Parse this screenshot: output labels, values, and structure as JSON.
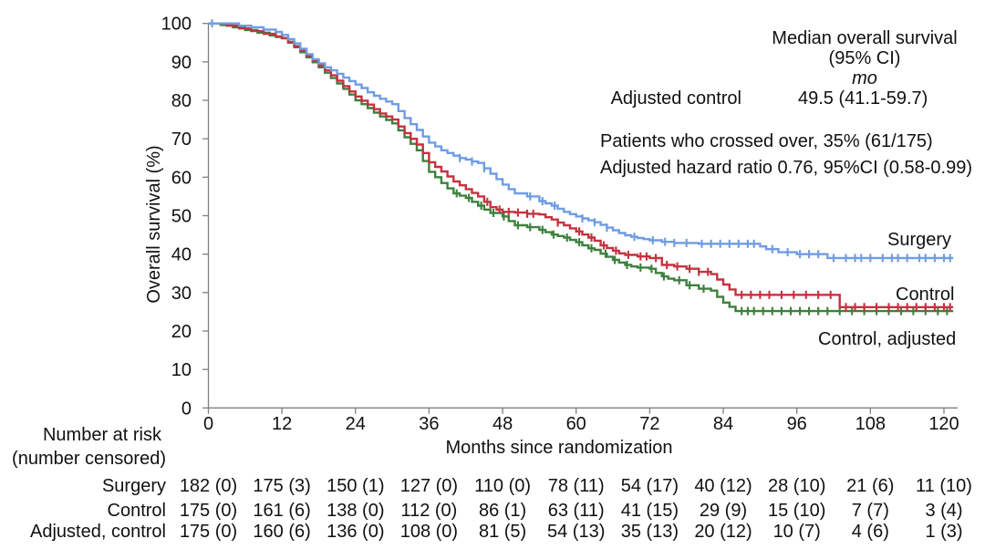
{
  "figure": {
    "background": "#ffffff",
    "text_color": "#111111",
    "axis_color": "#7f7f7f"
  },
  "annotations": {
    "median_title_line1": "Median overall survival",
    "median_title_line2": "(95% CI)",
    "median_unit": "mo",
    "median_row_label": "Adjusted control",
    "median_row_value": "49.5 (41.1-59.7)",
    "crossover_note": "Patients who crossed over, 35% (61/175)",
    "hazard_note": "Adjusted hazard ratio 0.76, 95%CI (0.58-0.99)"
  },
  "chart_data": {
    "type": "line",
    "subtype": "kaplan-meier-step",
    "title": "",
    "xlabel": "Months since randomization",
    "ylabel": "Overall survival (%)",
    "xlim": [
      0,
      122
    ],
    "ylim": [
      0,
      100
    ],
    "xticks": [
      0,
      12,
      24,
      36,
      48,
      60,
      72,
      84,
      96,
      108,
      120
    ],
    "yticks": [
      0,
      10,
      20,
      30,
      40,
      50,
      60,
      70,
      80,
      90,
      100
    ],
    "grid": false,
    "legend_position": "end-of-curve",
    "series": [
      {
        "name": "Surgery",
        "end_label": "Surgery",
        "color": "#6F9CE3",
        "points": [
          [
            0,
            100
          ],
          [
            5,
            99.4
          ],
          [
            7,
            99
          ],
          [
            9,
            98.4
          ],
          [
            11,
            97.8
          ],
          [
            12,
            97
          ],
          [
            13,
            95.9
          ],
          [
            14,
            94.8
          ],
          [
            15,
            93.4
          ],
          [
            16,
            92
          ],
          [
            17,
            90.7
          ],
          [
            18,
            89.6
          ],
          [
            19,
            88.6
          ],
          [
            20,
            87.8
          ],
          [
            21,
            86.9
          ],
          [
            22,
            85.9
          ],
          [
            23,
            85
          ],
          [
            24,
            84.1
          ],
          [
            25,
            83.2
          ],
          [
            26,
            82.1
          ],
          [
            27,
            81.2
          ],
          [
            28,
            80.4
          ],
          [
            29,
            79.7
          ],
          [
            30,
            79
          ],
          [
            31,
            77.2
          ],
          [
            32,
            75.4
          ],
          [
            33,
            73.8
          ],
          [
            34,
            72.3
          ],
          [
            35,
            70.6
          ],
          [
            36,
            69
          ],
          [
            37,
            68
          ],
          [
            38,
            67
          ],
          [
            39,
            66.3
          ],
          [
            40,
            65.6
          ],
          [
            41,
            65
          ],
          [
            42,
            64.6
          ],
          [
            43,
            64.1
          ],
          [
            44,
            63.7
          ],
          [
            45,
            62.3
          ],
          [
            46,
            60.9
          ],
          [
            47,
            59.5
          ],
          [
            48,
            58.1
          ],
          [
            49,
            56.9
          ],
          [
            50,
            55.8
          ],
          [
            52,
            55
          ],
          [
            54,
            53.8
          ],
          [
            55,
            53.2
          ],
          [
            56,
            52.6
          ],
          [
            57,
            51.8
          ],
          [
            58,
            51
          ],
          [
            59,
            50.4
          ],
          [
            60,
            49.8
          ],
          [
            61,
            49.3
          ],
          [
            62,
            48.8
          ],
          [
            63,
            48.3
          ],
          [
            64,
            47.6
          ],
          [
            65,
            46.9
          ],
          [
            66,
            46.2
          ],
          [
            67,
            45.5
          ],
          [
            68,
            44.9
          ],
          [
            69,
            44.5
          ],
          [
            70,
            44.2
          ],
          [
            71,
            43.9
          ],
          [
            72,
            43.6
          ],
          [
            74,
            43.2
          ],
          [
            76,
            42.9
          ],
          [
            80,
            42.7
          ],
          [
            90,
            42
          ],
          [
            91,
            41.3
          ],
          [
            93,
            40.5
          ],
          [
            96,
            40
          ],
          [
            101,
            39
          ],
          [
            121.5,
            39
          ]
        ],
        "censor_marks": [
          0.6,
          41,
          43,
          45,
          52.5,
          54.5,
          56.5,
          61,
          63,
          65,
          69.5,
          72.5,
          74.5,
          76,
          78,
          80.5,
          82,
          83.5,
          85,
          86.5,
          88,
          89,
          92,
          94.5,
          96.5,
          98,
          99.5,
          102,
          104,
          105.5,
          106.5,
          108,
          110,
          111.5,
          112.5,
          114,
          116,
          117,
          118.5,
          120,
          121
        ]
      },
      {
        "name": "Control",
        "end_label": "Control",
        "color": "#C4323F",
        "points": [
          [
            0,
            100
          ],
          [
            3,
            99.4
          ],
          [
            5,
            98.7
          ],
          [
            7,
            98
          ],
          [
            9,
            97.3
          ],
          [
            11,
            96.6
          ],
          [
            12,
            96.2
          ],
          [
            13,
            95.2
          ],
          [
            14,
            94.1
          ],
          [
            15,
            92.9
          ],
          [
            16,
            91.6
          ],
          [
            17,
            90.3
          ],
          [
            18,
            89.1
          ],
          [
            19,
            87.8
          ],
          [
            20,
            86.5
          ],
          [
            21,
            85.1
          ],
          [
            22,
            83.7
          ],
          [
            23,
            82.3
          ],
          [
            24,
            81
          ],
          [
            25,
            79.9
          ],
          [
            26,
            78.9
          ],
          [
            27,
            77.7
          ],
          [
            28,
            76.6
          ],
          [
            29,
            75.8
          ],
          [
            30,
            75
          ],
          [
            31,
            73.2
          ],
          [
            32,
            71.5
          ],
          [
            33,
            70
          ],
          [
            34,
            68.5
          ],
          [
            35,
            66.3
          ],
          [
            36,
            63.9
          ],
          [
            37,
            62.7
          ],
          [
            38,
            61.5
          ],
          [
            39,
            60.2
          ],
          [
            40,
            58.9
          ],
          [
            41,
            57.9
          ],
          [
            42,
            56.9
          ],
          [
            43,
            55.9
          ],
          [
            44,
            55
          ],
          [
            45,
            53.6
          ],
          [
            46,
            52.2
          ],
          [
            47,
            51.6
          ],
          [
            48,
            51
          ],
          [
            50,
            50.8
          ],
          [
            52,
            50.5
          ],
          [
            54,
            50.3
          ],
          [
            55,
            49.6
          ],
          [
            56,
            49
          ],
          [
            57,
            48.2
          ],
          [
            58,
            47.5
          ],
          [
            59,
            46.7
          ],
          [
            60,
            45.9
          ],
          [
            61,
            45.1
          ],
          [
            62,
            44.3
          ],
          [
            63,
            43.5
          ],
          [
            64,
            42.3
          ],
          [
            65,
            41.6
          ],
          [
            66,
            40.9
          ],
          [
            67,
            40.2
          ],
          [
            68,
            39.8
          ],
          [
            70,
            39.4
          ],
          [
            72,
            39
          ],
          [
            74,
            37.2
          ],
          [
            76,
            36.8
          ],
          [
            78,
            36.2
          ],
          [
            80,
            35.4
          ],
          [
            82,
            34.8
          ],
          [
            83,
            33.4
          ],
          [
            84,
            32.1
          ],
          [
            85,
            30.8
          ],
          [
            86,
            29.4
          ],
          [
            103,
            26.2
          ],
          [
            121.5,
            26.2
          ]
        ],
        "censor_marks": [
          45.5,
          47.5,
          49,
          50.5,
          52,
          53,
          57,
          60.5,
          62.5,
          64.5,
          66.5,
          68.5,
          70.5,
          71.5,
          73,
          74.8,
          76.5,
          78.5,
          80,
          81.5,
          87,
          88.5,
          90,
          91.5,
          93.5,
          95.5,
          97.5,
          99.5,
          101.5,
          104,
          105.5,
          107,
          109,
          111,
          112.5,
          114,
          115.5,
          117,
          118.5,
          120,
          121
        ]
      },
      {
        "name": "Control, adjusted",
        "end_label": "Control, adjusted",
        "color": "#3E803E",
        "points": [
          [
            0,
            100
          ],
          [
            2,
            99.6
          ],
          [
            4,
            99
          ],
          [
            6,
            98.3
          ],
          [
            8,
            97.6
          ],
          [
            10,
            96.9
          ],
          [
            11,
            96.5
          ],
          [
            12,
            96.1
          ],
          [
            13,
            95
          ],
          [
            14,
            93.8
          ],
          [
            15,
            92.5
          ],
          [
            16,
            91.2
          ],
          [
            17,
            89.9
          ],
          [
            18,
            88.6
          ],
          [
            19,
            87.2
          ],
          [
            20,
            85.8
          ],
          [
            21,
            84.4
          ],
          [
            22,
            83
          ],
          [
            23,
            81.5
          ],
          [
            24,
            80
          ],
          [
            25,
            79
          ],
          [
            26,
            78
          ],
          [
            27,
            76.8
          ],
          [
            28,
            75.8
          ],
          [
            29,
            74.9
          ],
          [
            30,
            74
          ],
          [
            31,
            72.2
          ],
          [
            32,
            70.4
          ],
          [
            33,
            68.7
          ],
          [
            34,
            67
          ],
          [
            35,
            64.2
          ],
          [
            36,
            61.4
          ],
          [
            37,
            60
          ],
          [
            38,
            58.5
          ],
          [
            39,
            57.1
          ],
          [
            40,
            55.8
          ],
          [
            41,
            55.2
          ],
          [
            42,
            54.6
          ],
          [
            43,
            53.6
          ],
          [
            44,
            52.6
          ],
          [
            45,
            51.6
          ],
          [
            46,
            50.7
          ],
          [
            48,
            49.8
          ],
          [
            49,
            48.6
          ],
          [
            50,
            47.5
          ],
          [
            52,
            47
          ],
          [
            54,
            46.3
          ],
          [
            55,
            45.7
          ],
          [
            56,
            45.1
          ],
          [
            57,
            44.7
          ],
          [
            58,
            44.3
          ],
          [
            59,
            43.7
          ],
          [
            60,
            43.1
          ],
          [
            61,
            42.3
          ],
          [
            62,
            41.5
          ],
          [
            63,
            41.1
          ],
          [
            64,
            40.1
          ],
          [
            65,
            39.3
          ],
          [
            66,
            38.5
          ],
          [
            67,
            37.8
          ],
          [
            68,
            37.2
          ],
          [
            69,
            36.8
          ],
          [
            70,
            36.5
          ],
          [
            72,
            36.2
          ],
          [
            73,
            35.1
          ],
          [
            74,
            34.2
          ],
          [
            75,
            33.6
          ],
          [
            76,
            33.2
          ],
          [
            78,
            31.9
          ],
          [
            80,
            31
          ],
          [
            82,
            30.5
          ],
          [
            83,
            28.9
          ],
          [
            84,
            27.4
          ],
          [
            85,
            26.3
          ],
          [
            86,
            25.2
          ],
          [
            121.5,
            25.2
          ]
        ],
        "censor_marks": [
          40.5,
          42.5,
          44.5,
          46.5,
          48.2,
          50.5,
          52.5,
          54.5,
          56.3,
          58.5,
          60.5,
          62.5,
          64.8,
          66.3,
          68.3,
          70.5,
          72.3,
          74.3,
          76.8,
          78.5,
          80.8,
          87,
          88,
          89,
          90.5,
          92,
          93.5,
          95,
          96.5,
          98,
          99.5,
          101,
          103,
          105,
          107,
          109,
          111,
          113,
          115,
          117,
          119,
          120.5
        ]
      }
    ]
  },
  "risk_table": {
    "title_line1": "Number at risk",
    "title_line2": "(number censored)",
    "rows": [
      {
        "label": "Surgery",
        "values": [
          "182 (0)",
          "175 (3)",
          "150 (1)",
          "127 (0)",
          "110 (0)",
          "78 (11)",
          "54 (17)",
          "40 (12)",
          "28 (10)",
          "21 (6)",
          "11 (10)"
        ]
      },
      {
        "label": "Control",
        "values": [
          "175 (0)",
          "161 (6)",
          "138 (0)",
          "112 (0)",
          "86 (1)",
          "63 (11)",
          "41 (15)",
          "29 (9)",
          "15 (10)",
          "7 (7)",
          "3 (4)"
        ]
      },
      {
        "label": "Adjusted, control",
        "values": [
          "175 (0)",
          "160 (6)",
          "136 (0)",
          "108 (0)",
          "81 (5)",
          "54 (13)",
          "35 (13)",
          "20 (12)",
          "10 (7)",
          "4 (6)",
          "1 (3)"
        ]
      }
    ]
  }
}
